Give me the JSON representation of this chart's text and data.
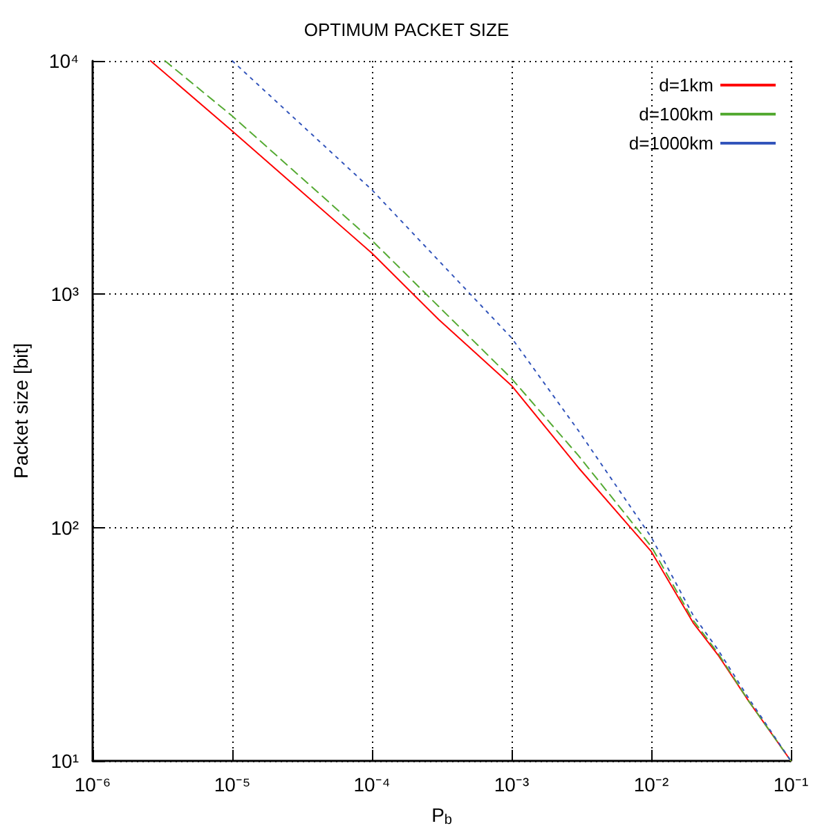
{
  "chart_data": {
    "type": "line",
    "title": "OPTIMUM PACKET SIZE",
    "xlabel": "P$_{b}$",
    "ylabel": "Packet size [bit]",
    "log": "xy",
    "grid": true,
    "legend": "top right",
    "marker": "none",
    "xlim": [
      1e-06,
      0.1
    ],
    "ylim": [
      10,
      10000
    ],
    "xticks": [
      {
        "value": 1e-06,
        "label": "10⁻⁶"
      },
      {
        "value": 1e-05,
        "label": "10⁻⁵"
      },
      {
        "value": 0.0001,
        "label": "10⁻⁴"
      },
      {
        "value": 0.001,
        "label": "10⁻³"
      },
      {
        "value": 0.01,
        "label": "10⁻²"
      },
      {
        "value": 0.1,
        "label": "10⁻¹"
      }
    ],
    "yticks": [
      {
        "value": 10,
        "label": "10¹"
      },
      {
        "value": 100,
        "label": "10²"
      },
      {
        "value": 1000,
        "label": "10³"
      },
      {
        "value": 10000,
        "label": "10⁴"
      }
    ],
    "series": [
      {
        "name": "d=1km",
        "color": "#ff0000",
        "line_style": "solid",
        "x": [
          2.6e-06,
          1e-05,
          0.0001,
          0.0003,
          0.001,
          0.003,
          0.01,
          0.02,
          0.03,
          0.05,
          0.1
        ],
        "values": [
          10000,
          5000,
          1500,
          780,
          406,
          181,
          79,
          39,
          28.5,
          18,
          10
        ]
      },
      {
        "name": "d=100km",
        "color": "#55aa33",
        "line_style": "dashed",
        "x": [
          3.3e-06,
          1e-05,
          0.0001,
          0.001,
          0.003,
          0.01,
          0.02,
          0.03,
          0.05,
          0.1
        ],
        "values": [
          10000,
          5800,
          1700,
          435,
          204,
          83,
          40,
          29,
          18,
          10
        ]
      },
      {
        "name": "d=1000km",
        "color": "#3355bb",
        "line_style": "dotted",
        "x": [
          1e-05,
          0.0001,
          0.001,
          0.003,
          0.01,
          0.02,
          0.03,
          0.05,
          0.1
        ],
        "values": [
          10000,
          2800,
          650,
          261,
          91,
          42,
          30,
          18.5,
          10
        ]
      }
    ]
  }
}
